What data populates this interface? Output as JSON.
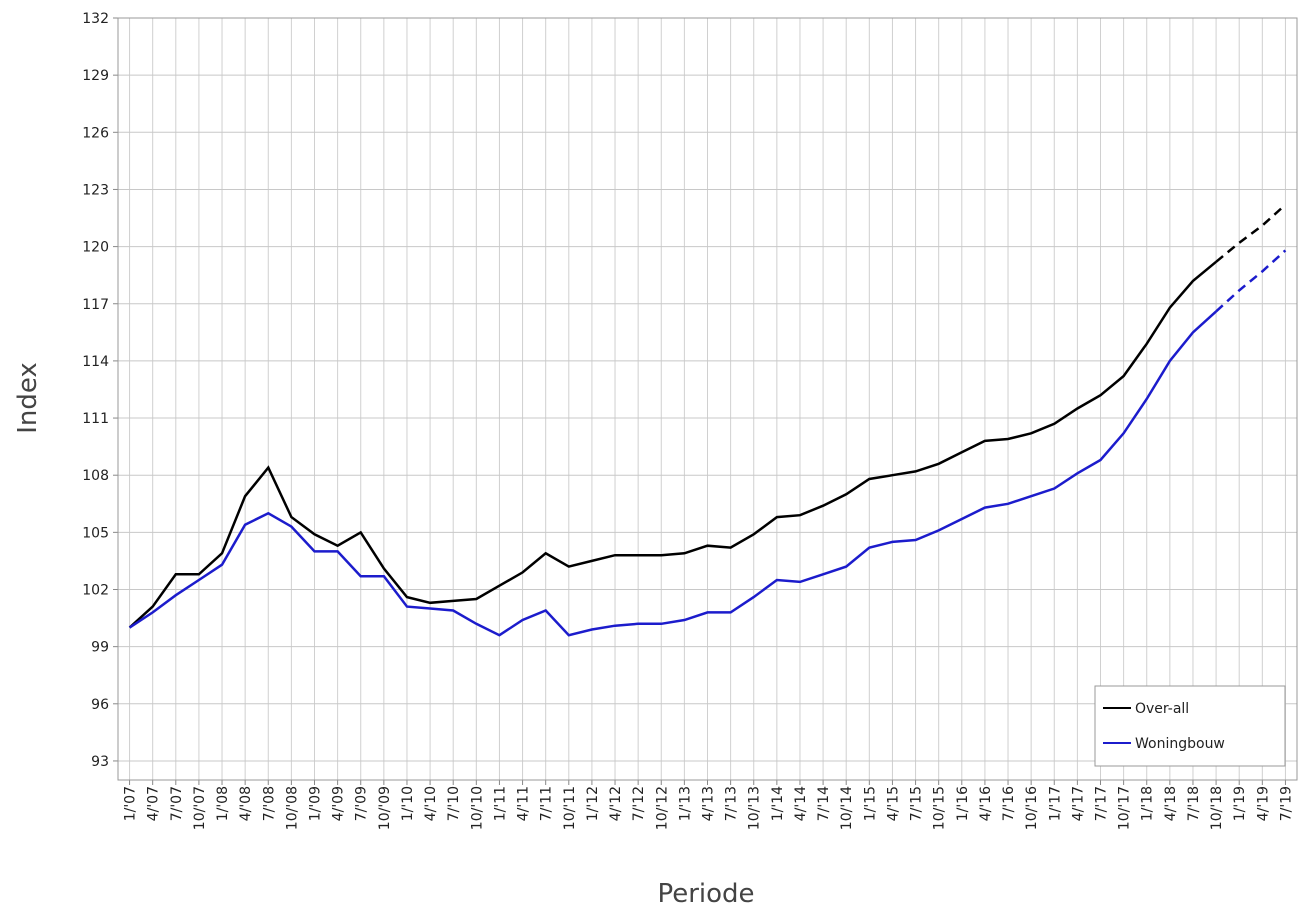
{
  "chart_data": {
    "type": "line",
    "x_label": "Periode",
    "y_label": "Index",
    "categories": [
      "1/'07",
      "4/'07",
      "7/'07",
      "10/'07",
      "1/'08",
      "4/'08",
      "7/'08",
      "10/'08",
      "1/'09",
      "4/'09",
      "7/'09",
      "10/'09",
      "1/'10",
      "4/'10",
      "7/'10",
      "10/'10",
      "1/'11",
      "4/'11",
      "7/'11",
      "10/'11",
      "1/'12",
      "4/'12",
      "7/'12",
      "10/'12",
      "1/'13",
      "4/'13",
      "7/'13",
      "10/'13",
      "1/'14",
      "4/'14",
      "7/'14",
      "10/'14",
      "1/'15",
      "4/'15",
      "7/'15",
      "10/'15",
      "1/'16",
      "4/'16",
      "7/'16",
      "10/'16",
      "1/'17",
      "4/'17",
      "7/'17",
      "10/'17",
      "1/'18",
      "4/'18",
      "7/'18",
      "10/'18",
      "1/'19",
      "4/'19",
      "7/'19"
    ],
    "forecast_from": "10/'18",
    "series": [
      {
        "name": "Over-all",
        "color": "#000000",
        "values": [
          100.0,
          101.1,
          102.8,
          102.8,
          103.9,
          106.9,
          108.4,
          105.8,
          104.9,
          104.3,
          105.0,
          103.1,
          101.6,
          101.3,
          101.4,
          101.5,
          102.2,
          102.9,
          103.9,
          103.2,
          103.5,
          103.8,
          103.8,
          103.8,
          103.9,
          104.3,
          104.2,
          104.9,
          105.8,
          105.9,
          106.4,
          107.0,
          107.8,
          108.0,
          108.2,
          108.6,
          109.2,
          109.8,
          109.9,
          110.2,
          110.7,
          111.5,
          112.2,
          113.2,
          114.9,
          116.8,
          118.2,
          119.2,
          120.2,
          121.1,
          122.2
        ]
      },
      {
        "name": "Woningbouw",
        "color": "#1c1ccc",
        "values": [
          100.0,
          100.8,
          101.7,
          102.5,
          103.3,
          105.4,
          106.0,
          105.3,
          104.0,
          104.0,
          102.7,
          102.7,
          101.1,
          101.0,
          100.9,
          100.2,
          99.6,
          100.4,
          100.9,
          99.6,
          99.9,
          100.1,
          100.2,
          100.2,
          100.4,
          100.8,
          100.8,
          101.6,
          102.5,
          102.4,
          102.8,
          103.2,
          104.2,
          104.5,
          104.6,
          105.1,
          105.7,
          106.3,
          106.5,
          106.9,
          107.3,
          108.1,
          108.8,
          110.2,
          112.0,
          114.0,
          115.5,
          116.6,
          117.7,
          118.7,
          119.8
        ]
      }
    ],
    "ylim": [
      92,
      132
    ],
    "yticks": [
      93,
      96,
      99,
      102,
      105,
      108,
      111,
      114,
      117,
      120,
      123,
      126,
      129,
      132
    ],
    "grid": true,
    "legend": "bottom-right"
  }
}
